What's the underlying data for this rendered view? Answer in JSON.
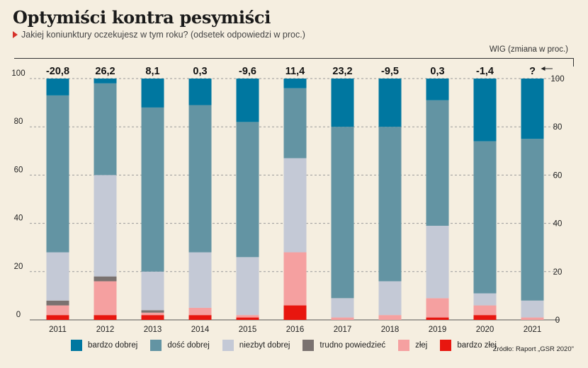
{
  "header": {
    "title": "Optymiści kontra pesymiści",
    "subtitle": "Jakiej koniunktury oczekujesz w tym roku? (odsetek odpowiedzi w proc.)",
    "wig_label": "WIG (zmiana w proc.)"
  },
  "source": "Źródło: Raport „GSR 2020\"",
  "colors": {
    "bardzo_dobrej": "#0077a0",
    "dosc_dobrej": "#6394a3",
    "niezbyt_dobrej": "#c4c9d6",
    "trudno_powiedziec": "#7a7270",
    "zlej": "#f5a0a0",
    "bardzo_zlej": "#e8160f",
    "background": "#f5eee0"
  },
  "chart_data": {
    "type": "bar",
    "stacked": true,
    "categories": [
      "2011",
      "2012",
      "2013",
      "2014",
      "2015",
      "2016",
      "2017",
      "2018",
      "2019",
      "2020",
      "2021"
    ],
    "wig_change": [
      "-20,8",
      "26,2",
      "8,1",
      "0,3",
      "-9,6",
      "11,4",
      "23,2",
      "-9,5",
      "0,3",
      "-1,4",
      "?"
    ],
    "ylim": [
      0,
      100
    ],
    "yticks": [
      0,
      20,
      40,
      60,
      80,
      100
    ],
    "grid": true,
    "series": [
      {
        "name": "bardzo złej",
        "color_key": "bardzo_zlej",
        "values": [
          2,
          2,
          2,
          2,
          1,
          6,
          0,
          0,
          1,
          2,
          0
        ]
      },
      {
        "name": "złej",
        "color_key": "zlej",
        "values": [
          4,
          14,
          1,
          3,
          1,
          22,
          1,
          2,
          8,
          4,
          1
        ]
      },
      {
        "name": "trudno powiedzieć",
        "color_key": "trudno_powiedziec",
        "values": [
          2,
          2,
          1,
          0,
          0,
          0,
          0,
          0,
          0,
          0,
          0
        ]
      },
      {
        "name": "niezbyt dobrej",
        "color_key": "niezbyt_dobrej",
        "values": [
          20,
          42,
          16,
          23,
          24,
          39,
          8,
          14,
          30,
          5,
          7
        ]
      },
      {
        "name": "dość dobrej",
        "color_key": "dosc_dobrej",
        "values": [
          65,
          38,
          68,
          61,
          56,
          29,
          71,
          64,
          52,
          63,
          67
        ]
      },
      {
        "name": "bardzo dobrej",
        "color_key": "bardzo_dobrej",
        "values": [
          7,
          2,
          12,
          11,
          18,
          4,
          20,
          20,
          9,
          26,
          25
        ]
      }
    ]
  },
  "legend": [
    {
      "label": "bardzo dobrej",
      "color_key": "bardzo_dobrej"
    },
    {
      "label": "dość dobrej",
      "color_key": "dosc_dobrej"
    },
    {
      "label": "niezbyt dobrej",
      "color_key": "niezbyt_dobrej"
    },
    {
      "label": "trudno powiedzieć",
      "color_key": "trudno_powiedziec"
    },
    {
      "label": "złej",
      "color_key": "zlej"
    },
    {
      "label": "bardzo złej",
      "color_key": "bardzo_zlej"
    }
  ]
}
